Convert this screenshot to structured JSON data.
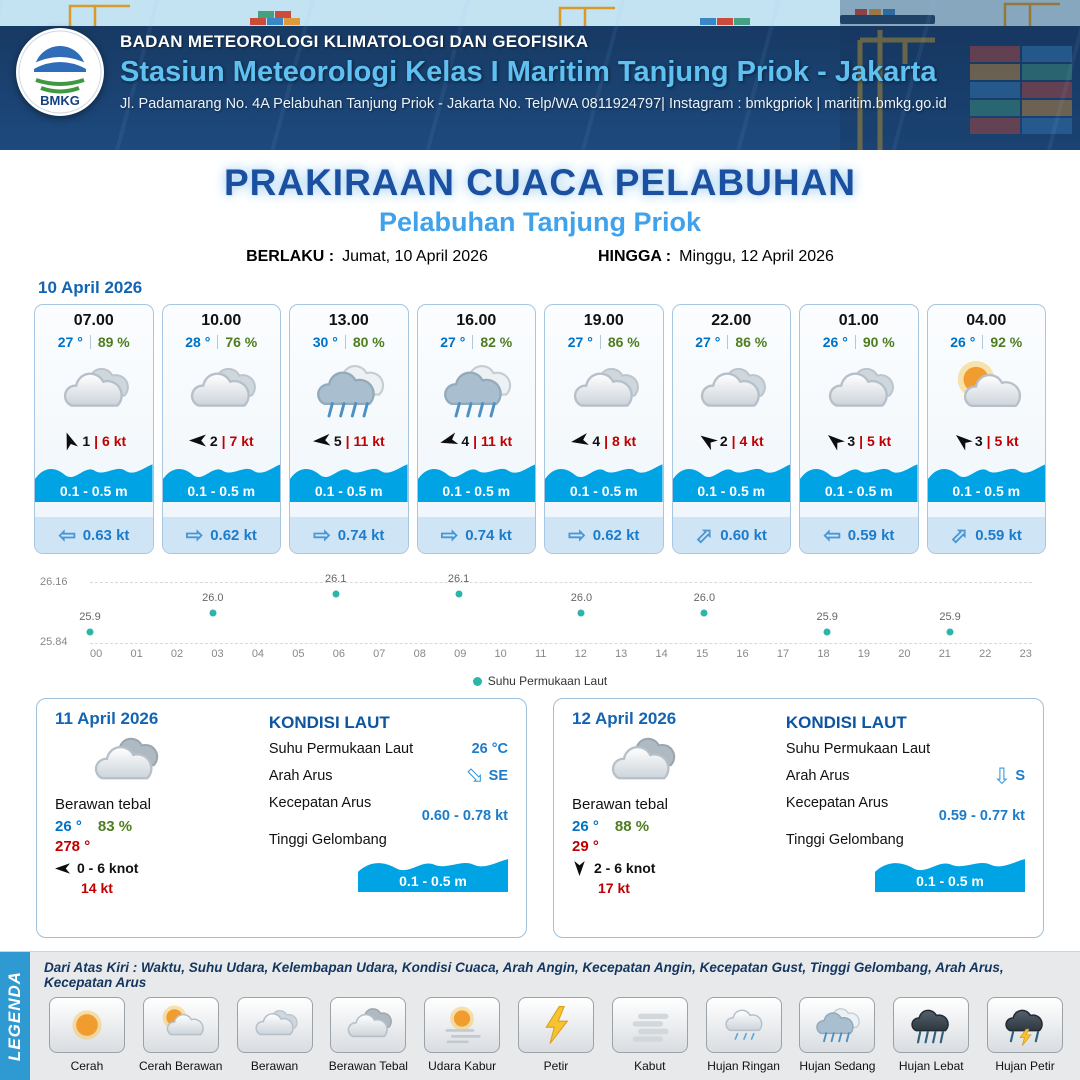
{
  "header": {
    "org": "BADAN METEOROLOGI KLIMATOLOGI DAN GEOFISIKA",
    "station": "Stasiun Meteorologi Kelas I Maritim Tanjung Priok - Jakarta",
    "address": "Jl. Padamarang No. 4A Pelabuhan Tanjung Priok - Jakarta No. Telp/WA 0811924797| Instagram : bmkgpriok | maritim.bmkg.go.id",
    "logo": "BMKG"
  },
  "title": {
    "main": "PRAKIRAAN CUACA PELABUHAN",
    "sub": "Pelabuhan Tanjung Priok",
    "berlaku_label": "BERLAKU :",
    "berlaku_value": "Jumat, 10 April 2026",
    "hingga_label": "HINGGA :",
    "hingga_value": "Minggu, 12 April 2026"
  },
  "forecast_date": "10 April 2026",
  "cards": [
    {
      "time": "07.00",
      "temp": "27 °",
      "humidity": "89 %",
      "icon": "berawan",
      "wind_dir_deg": -20,
      "wind": "1",
      "gust": "6 kt",
      "wave": "0.1 - 0.5 m",
      "current_dir": "W",
      "current": "0.63 kt"
    },
    {
      "time": "10.00",
      "temp": "28 °",
      "humidity": "76 %",
      "icon": "berawan",
      "wind_dir_deg": -90,
      "wind": "2",
      "gust": "7 kt",
      "wave": "0.1 - 0.5 m",
      "current_dir": "E",
      "current": "0.62 kt"
    },
    {
      "time": "13.00",
      "temp": "30 °",
      "humidity": "80 %",
      "icon": "hujan-sedang",
      "wind_dir_deg": -95,
      "wind": "5",
      "gust": "11 kt",
      "wave": "0.1 - 0.5 m",
      "current_dir": "E",
      "current": "0.74 kt"
    },
    {
      "time": "16.00",
      "temp": "27 °",
      "humidity": "82 %",
      "icon": "hujan-sedang",
      "wind_dir_deg": -105,
      "wind": "4",
      "gust": "11 kt",
      "wave": "0.1 - 0.5 m",
      "current_dir": "E",
      "current": "0.74 kt"
    },
    {
      "time": "19.00",
      "temp": "27 °",
      "humidity": "86 %",
      "icon": "berawan",
      "wind_dir_deg": -100,
      "wind": "4",
      "gust": "8 kt",
      "wave": "0.1 - 0.5 m",
      "current_dir": "E",
      "current": "0.62 kt"
    },
    {
      "time": "22.00",
      "temp": "27 °",
      "humidity": "86 %",
      "icon": "berawan",
      "wind_dir_deg": -55,
      "wind": "2",
      "gust": "4 kt",
      "wave": "0.1 - 0.5 m",
      "current_dir": "NE",
      "current": "0.60 kt"
    },
    {
      "time": "01.00",
      "temp": "26 °",
      "humidity": "90 %",
      "icon": "berawan",
      "wind_dir_deg": -50,
      "wind": "3",
      "gust": "5 kt",
      "wave": "0.1 - 0.5 m",
      "current_dir": "W",
      "current": "0.59 kt"
    },
    {
      "time": "04.00",
      "temp": "26 °",
      "humidity": "92 %",
      "icon": "cerah-berawan",
      "wind_dir_deg": -50,
      "wind": "3",
      "gust": "5 kt",
      "wave": "0.1 - 0.5 m",
      "current_dir": "NE",
      "current": "0.59 kt"
    }
  ],
  "chart_data": {
    "type": "scatter",
    "series_label": "Suhu Permukaan Laut",
    "x": [
      0,
      3,
      6,
      9,
      12,
      15,
      18,
      21
    ],
    "values": [
      25.9,
      26.0,
      26.1,
      26.1,
      26.0,
      26.0,
      25.9,
      25.9
    ],
    "point_labels": [
      "25.9",
      "26.0",
      "26.1",
      "26.1",
      "26.0",
      "26.0",
      "25.9",
      "25.9"
    ],
    "xticks": [
      "00",
      "01",
      "02",
      "03",
      "04",
      "05",
      "06",
      "07",
      "08",
      "09",
      "10",
      "11",
      "12",
      "13",
      "14",
      "15",
      "16",
      "17",
      "18",
      "19",
      "20",
      "21",
      "22",
      "23"
    ],
    "ylim": [
      25.84,
      26.16
    ],
    "yticks": [
      "26.16",
      "25.84"
    ],
    "point_color": "#2cb5a8",
    "legend_position": "bottom"
  },
  "day_cards": [
    {
      "date": "11 April 2026",
      "icon": "berawan-tebal",
      "condition": "Berawan tebal",
      "temp": "26 °",
      "humidity": "83 %",
      "wind_from": "278 °",
      "wind_dir_deg": -90,
      "wind_range": "0 - 6 knot",
      "gust": "14 kt",
      "sea": {
        "heading": "KONDISI LAUT",
        "sst_label": "Suhu Permukaan Laut",
        "sst_value": "26 °C",
        "arah_label": "Arah Arus",
        "arah_value": "SE",
        "kecepatan_label": "Kecepatan Arus",
        "kecepatan_value": "0.60 - 0.78 kt",
        "gelombang_label": "Tinggi Gelombang",
        "gelombang_value": "0.1 - 0.5 m"
      }
    },
    {
      "date": "12 April 2026",
      "icon": "berawan-tebal",
      "condition": "Berawan tebal",
      "temp": "26 °",
      "humidity": "88 %",
      "wind_from": "29 °",
      "wind_dir_deg": 180,
      "wind_range": "2 - 6 knot",
      "gust": "17 kt",
      "sea": {
        "heading": "KONDISI LAUT",
        "sst_label": "Suhu Permukaan Laut",
        "sst_value": "",
        "arah_label": "Arah Arus",
        "arah_value": "S",
        "kecepatan_label": "Kecepatan Arus",
        "kecepatan_value": "0.59 - 0.77 kt",
        "gelombang_label": "Tinggi Gelombang",
        "gelombang_value": "0.1 - 0.5 m"
      }
    }
  ],
  "legend": {
    "title": "LEGENDA",
    "note": "Dari Atas Kiri : Waktu, Suhu Udara, Kelembapan Udara, Kondisi Cuaca, Arah Angin, Kecepatan Angin, Kecepatan Gust, Tinggi Gelombang, Arah Arus, Kecepatan Arus",
    "items": [
      {
        "label": "Cerah",
        "icon": "cerah"
      },
      {
        "label": "Cerah Berawan",
        "icon": "cerah-berawan"
      },
      {
        "label": "Berawan",
        "icon": "berawan"
      },
      {
        "label": "Berawan Tebal",
        "icon": "berawan-tebal"
      },
      {
        "label": "Udara Kabur",
        "icon": "udara-kabur"
      },
      {
        "label": "Petir",
        "icon": "petir"
      },
      {
        "label": "Kabut",
        "icon": "kabut"
      },
      {
        "label": "Hujan Ringan",
        "icon": "hujan-ringan"
      },
      {
        "label": "Hujan Sedang",
        "icon": "hujan-sedang"
      },
      {
        "label": "Hujan Lebat",
        "icon": "hujan-lebat"
      },
      {
        "label": "Hujan Petir",
        "icon": "hujan-petir"
      }
    ]
  },
  "colors": {
    "accent_blue": "#2f9ad2",
    "temp_blue": "#0072c6",
    "humidity_green": "#4e7d1f",
    "alert_red": "#c00000",
    "wave_blue": "#00a3e4",
    "sst_teal": "#2cb5a8"
  }
}
